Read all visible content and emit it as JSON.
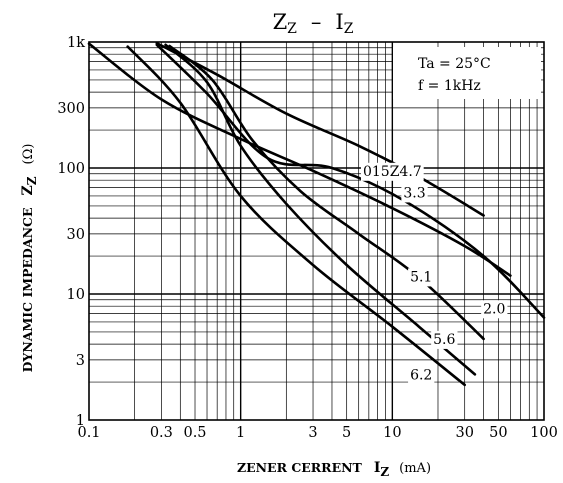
{
  "chart_data": {
    "type": "line",
    "title": "Z",
    "title_sub": "Z",
    "title_sep": "–",
    "title_right": "I",
    "title_right_sub": "Z",
    "xlabel": "ZENER CERRENT",
    "xlabel_symbol": "I",
    "xlabel_symbol_sub": "Z",
    "xlabel_unit": "(mA)",
    "ylabel": "DYNAMIC IMPEDANCE",
    "ylabel_symbol": "Z",
    "ylabel_symbol_sub": "Z",
    "ylabel_unit": "(Ω)",
    "xscale": "log",
    "yscale": "log",
    "xlim": [
      0.1,
      100
    ],
    "ylim": [
      1,
      1000
    ],
    "grid": true,
    "x_ticks": [
      {
        "v": 0.1,
        "label": "0.1"
      },
      {
        "v": 0.3,
        "label": "0.3"
      },
      {
        "v": 0.5,
        "label": "0.5"
      },
      {
        "v": 1,
        "label": "1"
      },
      {
        "v": 3,
        "label": "3"
      },
      {
        "v": 5,
        "label": "5"
      },
      {
        "v": 10,
        "label": "10"
      },
      {
        "v": 30,
        "label": "30"
      },
      {
        "v": 50,
        "label": "50"
      },
      {
        "v": 100,
        "label": "100"
      }
    ],
    "y_ticks": [
      {
        "v": 1,
        "label": "1"
      },
      {
        "v": 3,
        "label": "3"
      },
      {
        "v": 10,
        "label": "10"
      },
      {
        "v": 30,
        "label": "30"
      },
      {
        "v": 100,
        "label": "100"
      },
      {
        "v": 300,
        "label": "300"
      },
      {
        "v": 1000,
        "label": "1k"
      }
    ],
    "conditions": [
      "Ta = 25°C",
      "f = 1kHz"
    ],
    "series": [
      {
        "name": "015Z4.7",
        "label": "015Z4.7",
        "label_at": [
          10,
          95
        ],
        "x": [
          0.28,
          0.7,
          2,
          6,
          15,
          40
        ],
        "y": [
          980,
          550,
          270,
          150,
          85,
          42
        ]
      },
      {
        "name": "3.3",
        "label": "3.3",
        "label_at": [
          14,
          64
        ],
        "x": [
          0.1,
          0.3,
          1,
          3,
          10,
          30,
          60
        ],
        "y": [
          970,
          350,
          170,
          95,
          48,
          24,
          14
        ]
      },
      {
        "name": "2.0",
        "label": "2.0",
        "label_at": [
          47,
          7.7
        ],
        "x": [
          0.28,
          0.6,
          1.5,
          4,
          12,
          40,
          100
        ],
        "y": [
          950,
          390,
          120,
          100,
          55,
          20,
          6.5
        ]
      },
      {
        "name": "5.1",
        "label": "5.1",
        "label_at": [
          15.5,
          13.8
        ],
        "x": [
          0.34,
          0.65,
          1.2,
          2.5,
          6,
          15,
          40
        ],
        "y": [
          930,
          500,
          165,
          65,
          30,
          13.5,
          4.4
        ]
      },
      {
        "name": "5.6",
        "label": "5.6",
        "label_at": [
          22,
          4.4
        ],
        "x": [
          0.32,
          0.6,
          1,
          2,
          5,
          15,
          35
        ],
        "y": [
          950,
          480,
          150,
          52,
          17,
          5.5,
          2.3
        ]
      },
      {
        "name": "6.2",
        "label": "6.2",
        "label_at": [
          15.5,
          2.3
        ],
        "x": [
          0.18,
          0.4,
          1,
          3,
          10,
          30
        ],
        "y": [
          920,
          330,
          60,
          17,
          5.5,
          1.9
        ]
      }
    ]
  }
}
